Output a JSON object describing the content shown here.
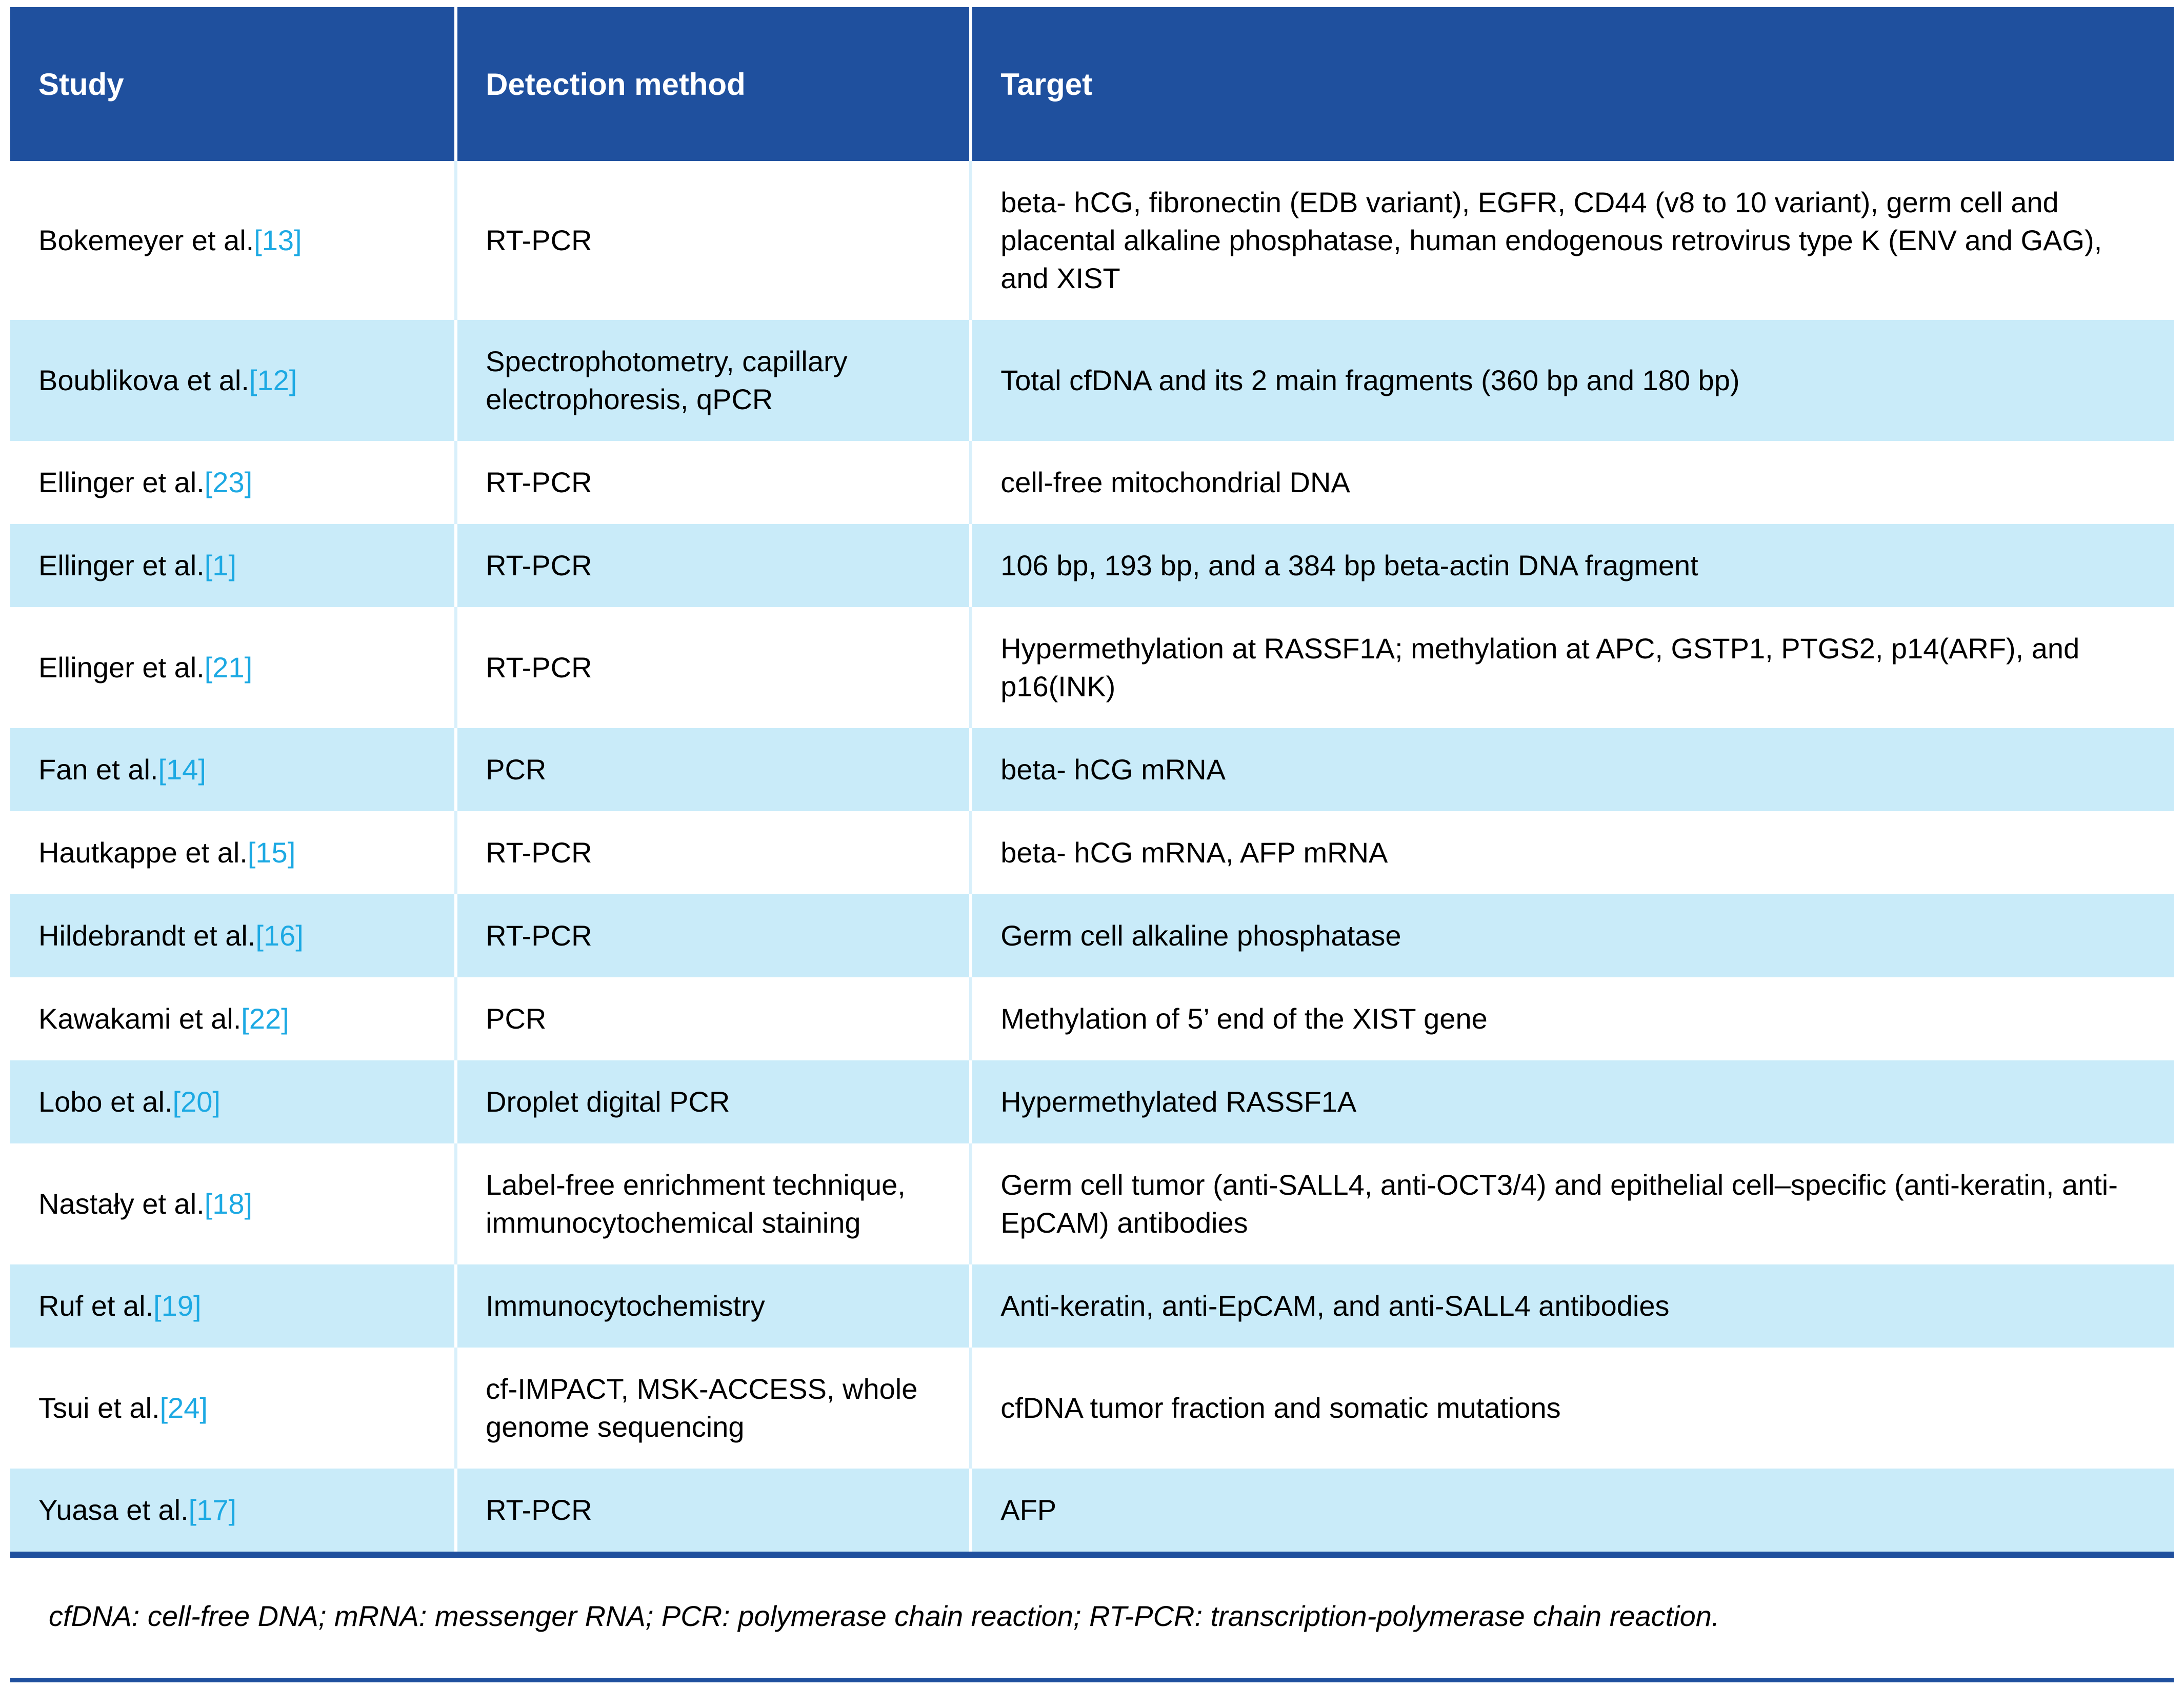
{
  "table": {
    "columns": [
      "Study",
      "Detection method",
      "Target"
    ],
    "rows": [
      {
        "study": "Bokemeyer et al.",
        "ref": "[13]",
        "method": "RT-PCR",
        "target": "beta- hCG, fibronectin (EDB variant), EGFR, CD44 (v8 to 10 variant), germ cell and placental alkaline phosphatase, human endogenous retrovirus type K (ENV and GAG), and XIST"
      },
      {
        "study": "Boublikova et al.",
        "ref": "[12]",
        "method": "Spectrophotometry, capillary electrophoresis, qPCR",
        "target": "Total cfDNA and its 2 main fragments (360 bp and 180 bp)"
      },
      {
        "study": "Ellinger et al.",
        "ref": "[23]",
        "method": "RT-PCR",
        "target": "cell-free mitochondrial DNA"
      },
      {
        "study": "Ellinger et al.",
        "ref": "[1]",
        "method": "RT-PCR",
        "target": "106 bp, 193 bp, and a 384 bp beta-actin DNA fragment"
      },
      {
        "study": "Ellinger et al.",
        "ref": "[21]",
        "method": "RT-PCR",
        "target": "Hypermethylation at RASSF1A; methylation at APC, GSTP1, PTGS2, p14(ARF), and p16(INK)"
      },
      {
        "study": "Fan et al.",
        "ref": "[14]",
        "method": "PCR",
        "target": "beta- hCG mRNA"
      },
      {
        "study": "Hautkappe et al.",
        "ref": "[15]",
        "method": "RT-PCR",
        "target": "beta- hCG mRNA, AFP mRNA"
      },
      {
        "study": "Hildebrandt et al.",
        "ref": "[16]",
        "method": "RT-PCR",
        "target": "Germ cell alkaline phosphatase"
      },
      {
        "study": "Kawakami et al.",
        "ref": "[22]",
        "method": "PCR",
        "target": "Methylation of 5’ end of the XIST gene"
      },
      {
        "study": "Lobo et al.",
        "ref": "[20]",
        "method": "Droplet digital PCR",
        "target": "Hypermethylated RASSF1A"
      },
      {
        "study": "Nastały et al.",
        "ref": "[18]",
        "method": "Label-free enrichment technique, immunocytochemical staining",
        "target": "Germ cell tumor (anti-SALL4, anti-OCT3/4) and epithelial cell–specific (anti-keratin, anti-EpCAM) antibodies"
      },
      {
        "study": "Ruf et al.",
        "ref": "[19]",
        "method": "Immunocytochemistry",
        "target": "Anti-keratin, anti-EpCAM, and anti-SALL4 antibodies"
      },
      {
        "study": "Tsui et al.",
        "ref": "[24]",
        "method": "cf-IMPACT, MSK-ACCESS, whole genome sequencing",
        "target": "cfDNA tumor fraction and somatic mutations"
      },
      {
        "study": "Yuasa et al.",
        "ref": "[17]",
        "method": "RT-PCR",
        "target": "AFP"
      }
    ]
  },
  "footnote": "cfDNA: cell-free DNA; mRNA: messenger RNA; PCR: polymerase chain reaction; RT-PCR: transcription-polymerase chain reaction.",
  "colors": {
    "header_blue": "#1F509E",
    "row_light_blue": "#C9EBF9",
    "citation_cyan": "#1CA9E3",
    "rule_blue": "#1F509E"
  }
}
